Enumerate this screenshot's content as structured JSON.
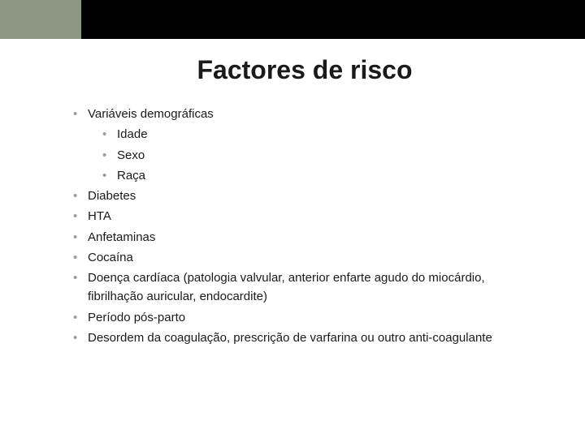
{
  "colors": {
    "topbar": "#000000",
    "accent": "#8b9683",
    "background": "#ffffff",
    "bullet": "#9c9c9c",
    "text": "#1a1a1a"
  },
  "typography": {
    "title_fontsize": 32,
    "title_weight": "bold",
    "body_fontsize": 15,
    "font_family": "Arial"
  },
  "title": "Factores de risco",
  "items": [
    {
      "label": "Variáveis demográficas",
      "children": [
        {
          "label": "Idade"
        },
        {
          "label": "Sexo"
        },
        {
          "label": "Raça"
        }
      ]
    },
    {
      "label": "Diabetes"
    },
    {
      "label": "HTA"
    },
    {
      "label": "Anfetaminas"
    },
    {
      "label": "Cocaína"
    },
    {
      "label": "Doença cardíaca (patologia valvular, anterior enfarte agudo do miocárdio, fibrilhação auricular, endocardite)"
    },
    {
      "label": "Período pós-parto"
    },
    {
      "label": "Desordem da coagulação, prescrição de varfarina ou outro anti-coagulante"
    }
  ]
}
